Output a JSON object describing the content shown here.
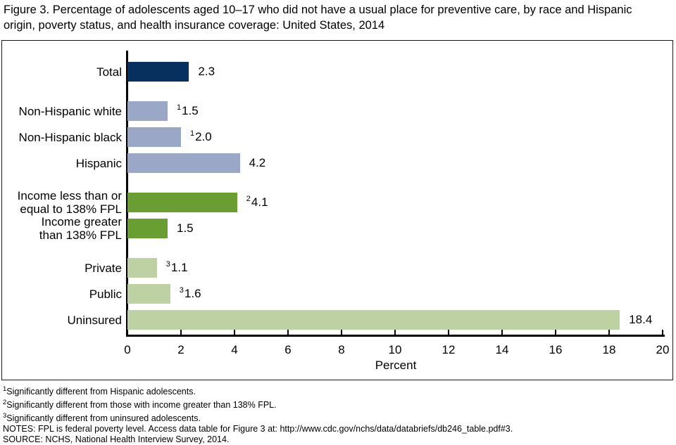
{
  "title": "Figure 3. Percentage of adolescents aged 10–17 who did not have a usual place for preventive care, by race and Hispanic origin, poverty status, and health insurance coverage: United States, 2014",
  "chart_data": {
    "type": "bar",
    "orientation": "horizontal",
    "title": "Percentage of adolescents aged 10–17 who did not have a usual place for preventive care, by race and Hispanic origin, poverty status, and health insurance coverage: United States, 2014",
    "xlabel": "Percent",
    "xlim": [
      0,
      20
    ],
    "xticks": [
      0,
      2,
      4,
      6,
      8,
      10,
      12,
      14,
      16,
      18,
      20
    ],
    "grid": false,
    "legend": "none",
    "colors": {
      "total": "#07305f",
      "race": "#9aa7c7",
      "poverty": "#689e32",
      "insurance": "#bdd1a2"
    },
    "rows": [
      {
        "label": "Total",
        "label_lines": [
          "Total"
        ],
        "group": "total",
        "value": 2.3,
        "value_label": "2.3",
        "marker": ""
      },
      {
        "label": "Non-Hispanic white",
        "label_lines": [
          "Non-Hispanic white"
        ],
        "group": "race",
        "value": 1.5,
        "value_label": "1.5",
        "marker": "1"
      },
      {
        "label": "Non-Hispanic black",
        "label_lines": [
          "Non-Hispanic black"
        ],
        "group": "race",
        "value": 2.0,
        "value_label": "2.0",
        "marker": "1"
      },
      {
        "label": "Hispanic",
        "label_lines": [
          "Hispanic"
        ],
        "group": "race",
        "value": 4.2,
        "value_label": "4.2",
        "marker": ""
      },
      {
        "label": "Income less than or equal to 138% FPL",
        "label_lines": [
          "Income less than or",
          "equal to 138% FPL"
        ],
        "group": "poverty",
        "value": 4.1,
        "value_label": "4.1",
        "marker": "2"
      },
      {
        "label": "Income greater than 138% FPL",
        "label_lines": [
          "Income greater",
          "than 138% FPL"
        ],
        "group": "poverty",
        "value": 1.5,
        "value_label": "1.5",
        "marker": ""
      },
      {
        "label": "Private",
        "label_lines": [
          "Private"
        ],
        "group": "insurance",
        "value": 1.1,
        "value_label": "1.1",
        "marker": "3"
      },
      {
        "label": "Public",
        "label_lines": [
          "Public"
        ],
        "group": "insurance",
        "value": 1.6,
        "value_label": "1.6",
        "marker": "3"
      },
      {
        "label": "Uninsured",
        "label_lines": [
          "Uninsured"
        ],
        "group": "insurance",
        "value": 18.4,
        "value_label": "18.4",
        "marker": ""
      }
    ]
  },
  "footnotes": [
    {
      "marker": "1",
      "text": "Significantly different from Hispanic adolescents."
    },
    {
      "marker": "2",
      "text": "Significantly different from those with income greater than 138% FPL."
    },
    {
      "marker": "3",
      "text": "Significantly different from uninsured adolescents."
    }
  ],
  "notes": "NOTES: FPL is federal poverty level. Access data table for Figure 3 at: http://www.cdc.gov/nchs/data/databriefs/db246_table.pdf#3.",
  "source": "SOURCE: NCHS, National Health Interview Survey, 2014."
}
